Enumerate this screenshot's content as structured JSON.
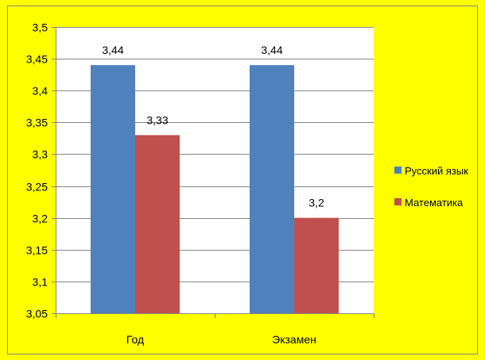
{
  "colors": {
    "background": "#FFFF00",
    "plot_area": "#FFFFFF",
    "border": "#868686",
    "gridline": "#868686",
    "axis": "#868686",
    "text": "#000000"
  },
  "chart_data": {
    "type": "bar",
    "title": "",
    "xlabel": "",
    "ylabel": "",
    "categories": [
      "Год",
      "Экзамен"
    ],
    "series": [
      {
        "name": "Русский язык",
        "color": "#4F81BD",
        "values": [
          3.44,
          3.44
        ],
        "labels": [
          "3,44",
          "3,44"
        ]
      },
      {
        "name": "Математика",
        "color": "#C0504D",
        "values": [
          3.33,
          3.2
        ],
        "labels": [
          "3,33",
          "3,2"
        ]
      }
    ],
    "ylim": [
      3.05,
      3.5
    ],
    "y_ticks": [
      3.05,
      3.1,
      3.15,
      3.2,
      3.25,
      3.3,
      3.35,
      3.4,
      3.45,
      3.5
    ],
    "y_tick_labels": [
      "3,05",
      "3,1",
      "3,15",
      "3,2",
      "3,25",
      "3,3",
      "3,35",
      "3,4",
      "3,45",
      "3,5"
    ],
    "grid": true,
    "legend_position": "right"
  }
}
